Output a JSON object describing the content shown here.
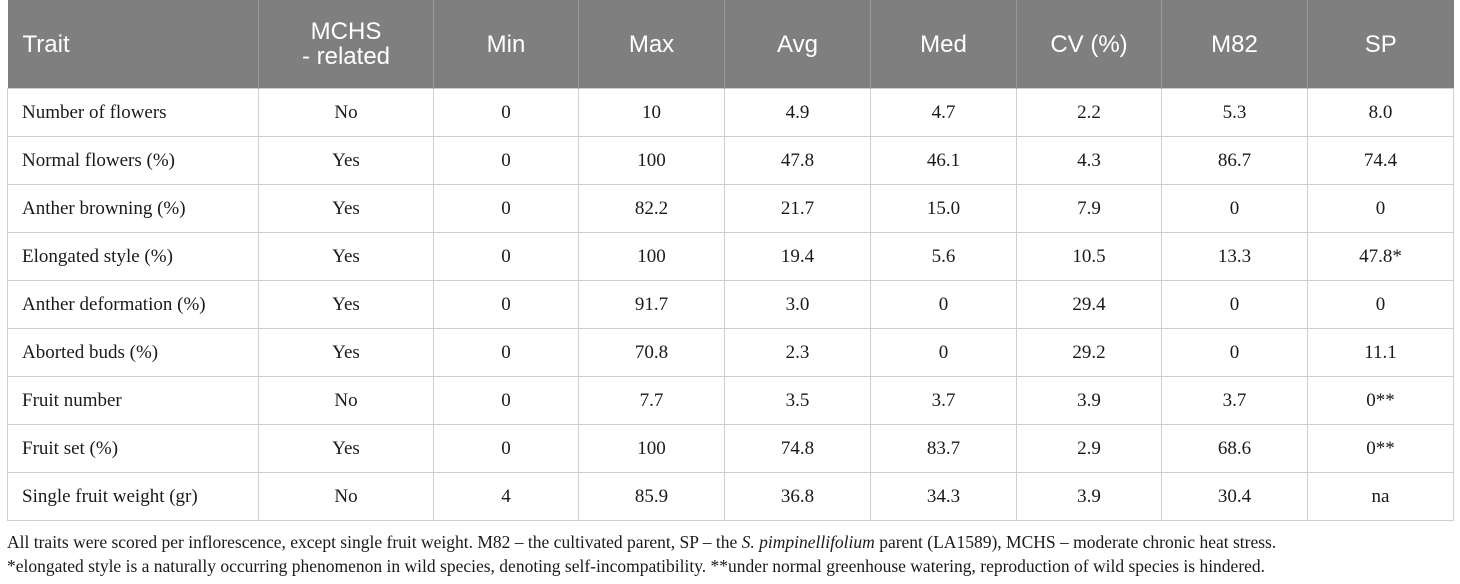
{
  "columns": {
    "trait": "Trait",
    "mchs_line1": "MCHS",
    "mchs_line2": "- related",
    "min": "Min",
    "max": "Max",
    "avg": "Avg",
    "med": "Med",
    "cv": "CV (%)",
    "m82": "M82",
    "sp": "SP"
  },
  "rows": [
    {
      "trait": "Number of flowers",
      "mchs": "No",
      "min": "0",
      "max": "10",
      "avg": "4.9",
      "med": "4.7",
      "cv": "2.2",
      "m82": "5.3",
      "sp": "8.0"
    },
    {
      "trait": "Normal flowers (%)",
      "mchs": "Yes",
      "min": "0",
      "max": "100",
      "avg": "47.8",
      "med": "46.1",
      "cv": "4.3",
      "m82": "86.7",
      "sp": "74.4"
    },
    {
      "trait": "Anther browning (%)",
      "mchs": "Yes",
      "min": "0",
      "max": "82.2",
      "avg": "21.7",
      "med": "15.0",
      "cv": "7.9",
      "m82": "0",
      "sp": "0"
    },
    {
      "trait": "Elongated style (%)",
      "mchs": "Yes",
      "min": "0",
      "max": "100",
      "avg": "19.4",
      "med": "5.6",
      "cv": "10.5",
      "m82": "13.3",
      "sp": "47.8*"
    },
    {
      "trait": "Anther deformation (%)",
      "mchs": "Yes",
      "min": "0",
      "max": "91.7",
      "avg": "3.0",
      "med": "0",
      "cv": "29.4",
      "m82": "0",
      "sp": "0"
    },
    {
      "trait": "Aborted buds (%)",
      "mchs": "Yes",
      "min": "0",
      "max": "70.8",
      "avg": "2.3",
      "med": "0",
      "cv": "29.2",
      "m82": "0",
      "sp": "11.1"
    },
    {
      "trait": "Fruit number",
      "mchs": "No",
      "min": "0",
      "max": "7.7",
      "avg": "3.5",
      "med": "3.7",
      "cv": "3.9",
      "m82": "3.7",
      "sp": "0**"
    },
    {
      "trait": "Fruit set (%)",
      "mchs": "Yes",
      "min": "0",
      "max": "100",
      "avg": "74.8",
      "med": "83.7",
      "cv": "2.9",
      "m82": "68.6",
      "sp": "0**"
    },
    {
      "trait": "Single fruit weight (gr)",
      "mchs": "No",
      "min": "4",
      "max": "85.9",
      "avg": "36.8",
      "med": "34.3",
      "cv": "3.9",
      "m82": "30.4",
      "sp": "na"
    }
  ],
  "footnote": {
    "line1_before_italic": "All traits were scored per inflorescence, except single fruit weight. M82 – the cultivated parent, SP – the ",
    "line1_italic": "S. pimpinellifolium",
    "line1_after_italic": " parent (LA1589), MCHS – moderate chronic heat stress.",
    "line2": "*elongated style is a naturally occurring phenomenon in wild species, denoting self-incompatibility. **under normal greenhouse watering, reproduction of wild species is hindered."
  },
  "colors": {
    "header_bg": "#7f7f7f",
    "header_text": "#ffffff",
    "grid": "#cfcfcf"
  }
}
